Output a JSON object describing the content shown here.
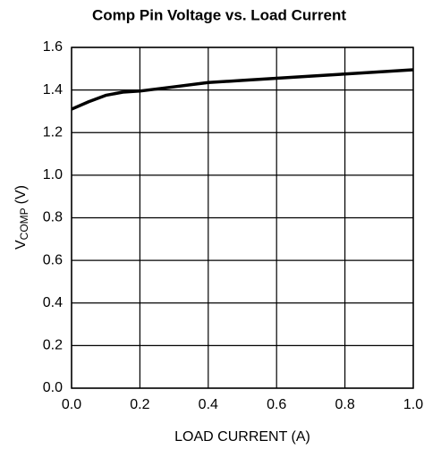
{
  "chart_data": {
    "type": "line",
    "title": "Comp Pin Voltage vs. Load Current",
    "xlabel": "LOAD CURRENT (A)",
    "ylabel": {
      "main": "V",
      "sub": "COMP",
      "unit": "(V)"
    },
    "x": [
      0,
      0.05,
      0.1,
      0.15,
      0.2,
      0.3,
      0.4,
      0.5,
      0.6,
      0.7,
      0.8,
      0.9,
      1.0
    ],
    "values": [
      1.31,
      1.345,
      1.375,
      1.39,
      1.395,
      1.415,
      1.435,
      1.445,
      1.455,
      1.465,
      1.475,
      1.485,
      1.495
    ],
    "color": "#000000",
    "xlim": [
      0,
      1
    ],
    "xticks": [
      {
        "value": 0,
        "label": "0.0"
      },
      0.2,
      0.4,
      0.6,
      0.8,
      {
        "value": 1,
        "label": "1.0"
      }
    ],
    "ylim": [
      0,
      1.6
    ],
    "yticks": [
      {
        "value": 0,
        "label": "0.0"
      },
      0.2,
      0.4,
      0.6,
      0.8,
      {
        "value": 1,
        "label": "1.0"
      },
      1.2,
      1.4,
      1.6
    ],
    "grid": true
  }
}
